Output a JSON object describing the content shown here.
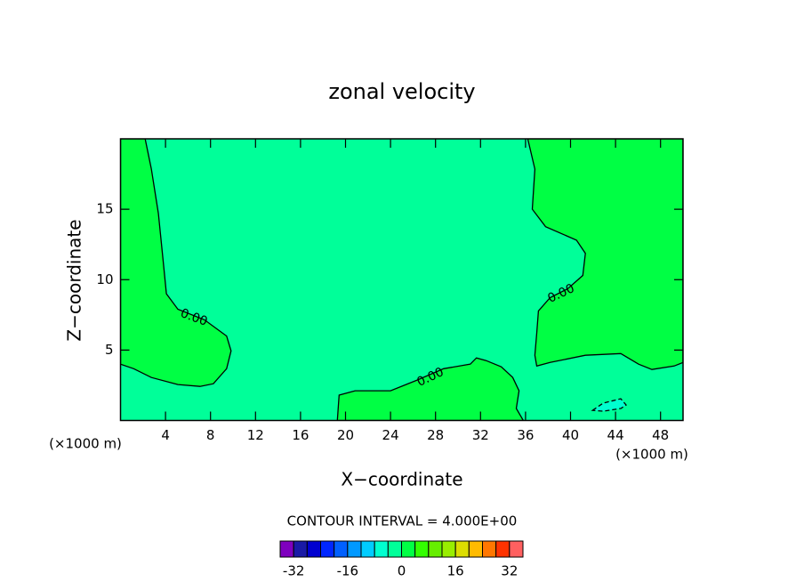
{
  "chart_data": {
    "type": "contour",
    "title": "zonal velocity",
    "x_label": "X−coordinate",
    "y_label": "Z−coordinate",
    "x_unit": "(×1000 m)",
    "y_unit": "(×1000 m)",
    "xlim": [
      0,
      50
    ],
    "ylim": [
      0,
      20
    ],
    "xticks": [
      4,
      8,
      12,
      16,
      20,
      24,
      28,
      32,
      36,
      40,
      44,
      48
    ],
    "yticks": [
      5,
      10,
      15
    ],
    "background_low": -4,
    "contour_label": "0.00",
    "contour_interval_text": "CONTOUR INTERVAL = 4.000E+00",
    "regions": [
      {
        "low": 0,
        "x": [
          0,
          2.19,
          2.74,
          3.37,
          3.76,
          4.08,
          5.1,
          7.46,
          9.43,
          9.83,
          9.43,
          8.25,
          7.07,
          5.1,
          2.74,
          1.17,
          0
        ],
        "z": [
          20,
          20,
          17.85,
          14.7,
          11.55,
          9.0,
          7.9,
          7.15,
          6.0,
          4.94,
          3.68,
          2.61,
          2.42,
          2.55,
          3.05,
          3.68,
          4.0
        ]
      },
      {
        "low": 0,
        "x": [
          50,
          36.2,
          36.83,
          36.6,
          37.78,
          40.53,
          41.32,
          41.09,
          39.75,
          38.18,
          37.15,
          37.0,
          36.83,
          37.0,
          38.18,
          41.32,
          44.47,
          46.05,
          47.23,
          49.2,
          50
        ],
        "z": [
          20,
          20,
          17.85,
          15.0,
          13.76,
          12.8,
          11.87,
          10.3,
          9.35,
          8.72,
          7.78,
          6.2,
          4.63,
          3.87,
          4.12,
          4.63,
          4.75,
          4.0,
          3.62,
          3.87,
          4.12
        ]
      },
      {
        "low": 0,
        "x": [
          19.27,
          19.43,
          20.85,
          24.0,
          26.36,
          28.72,
          31.09,
          31.64,
          32.5,
          33.84,
          34.86,
          35.42,
          35.18,
          35.8
        ],
        "z": [
          0,
          1.8,
          2.11,
          2.11,
          2.87,
          3.68,
          4.0,
          4.44,
          4.25,
          3.81,
          3.05,
          2.11,
          0.85,
          0
        ]
      },
      {
        "low": -8,
        "x": [
          41.96,
          42.9,
          44.47,
          44.94,
          44.47,
          42.9
        ],
        "z": [
          0.72,
          1.23,
          1.54,
          1.1,
          0.85,
          0.66
        ]
      }
    ],
    "colorbar": {
      "levels": [
        -36,
        -32,
        -28,
        -24,
        -20,
        -16,
        -12,
        -8,
        -4,
        0,
        4,
        8,
        12,
        16,
        20,
        24,
        28,
        32,
        36
      ],
      "colors": [
        "#7f00bf",
        "#1a1aa6",
        "#0000d0",
        "#0026ff",
        "#0060ff",
        "#0099ff",
        "#00ccff",
        "#00ffd0",
        "#00ff99",
        "#00ff44",
        "#33ff00",
        "#66ee00",
        "#99ee00",
        "#dddd00",
        "#ffbb00",
        "#ff7700",
        "#ff3300",
        "#ff6060",
        "#ff9999"
      ],
      "ticks": [
        -32,
        -16,
        0,
        16,
        32
      ]
    }
  }
}
